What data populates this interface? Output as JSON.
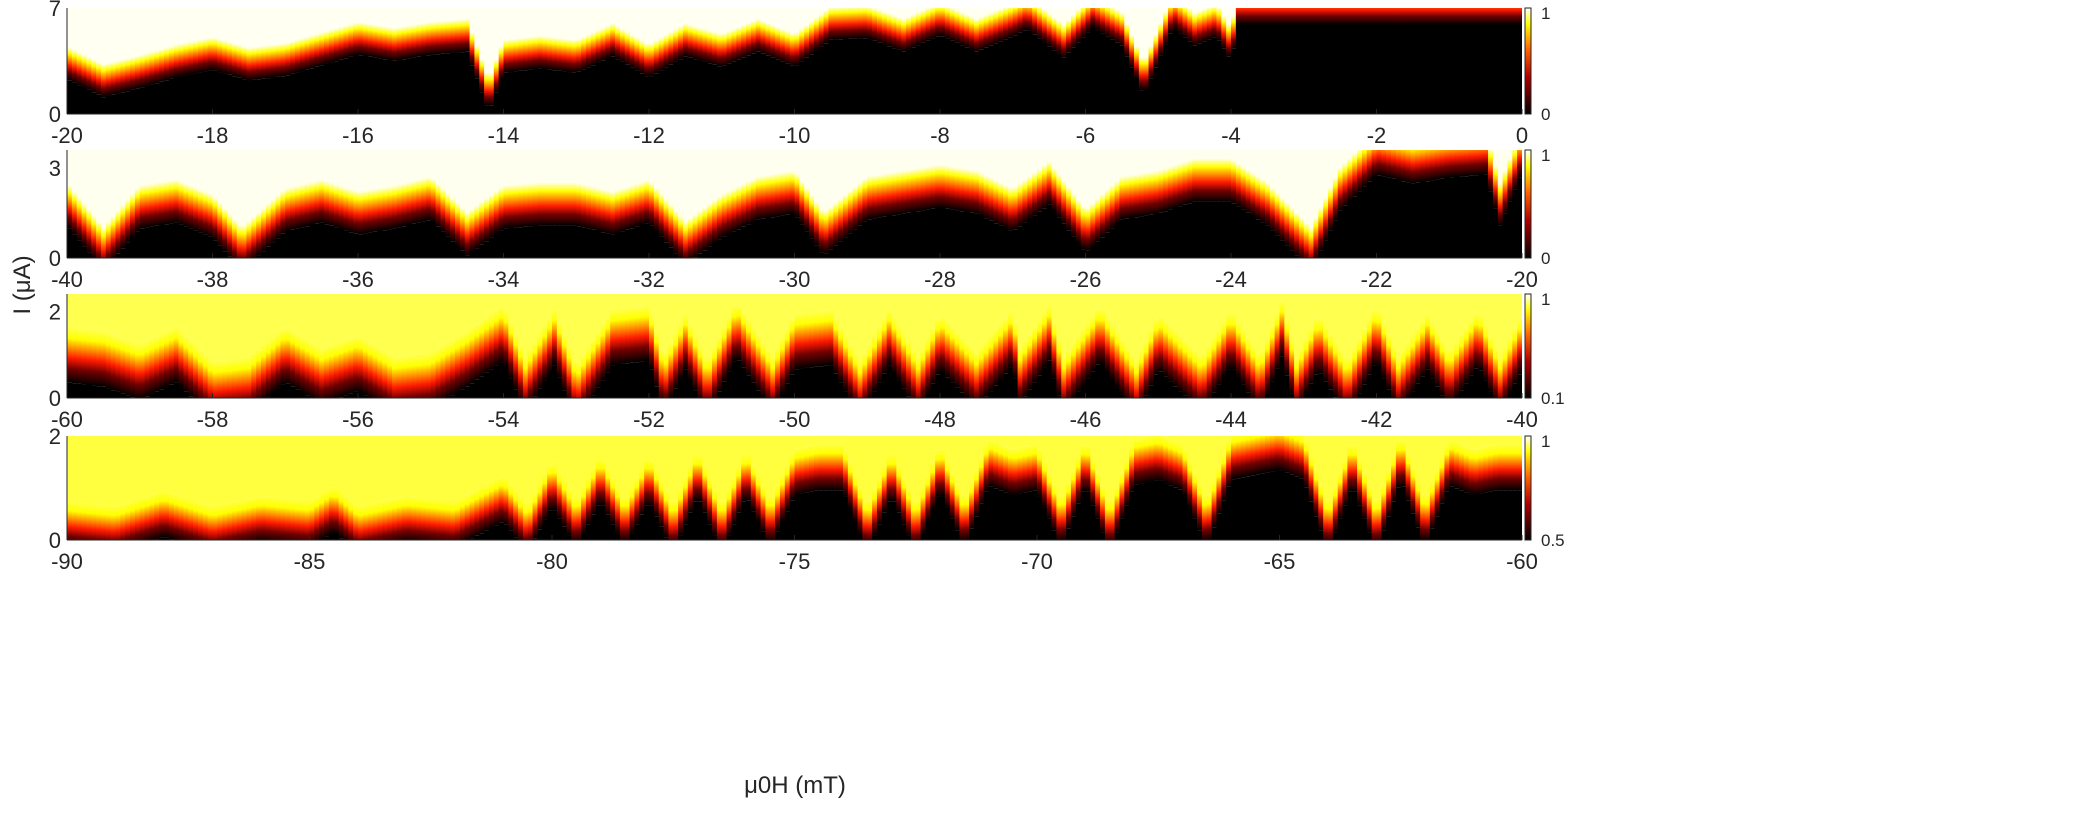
{
  "chart_data": {
    "type": "heatmap",
    "ylabel": "I (μA)",
    "xlabel": "μ0H (mT)",
    "colormap": "hot",
    "panels": [
      {
        "xlim": [
          -20,
          0
        ],
        "ylim": [
          0,
          7
        ],
        "xticks": [
          "-20",
          "-18",
          "-16",
          "-14",
          "-12",
          "-10",
          "-8",
          "-6",
          "-4",
          "-2",
          "0"
        ],
        "yticks": [
          "0",
          "7"
        ],
        "colorbar": {
          "min": "0",
          "max": "1"
        },
        "top_color": "#fffff2",
        "critical_current_boundary": [
          [
            -20,
            3.4
          ],
          [
            -19.5,
            2.2
          ],
          [
            -19,
            2.8
          ],
          [
            -18.5,
            3.5
          ],
          [
            -18,
            4.0
          ],
          [
            -17.5,
            3.3
          ],
          [
            -17,
            3.6
          ],
          [
            -16.5,
            4.3
          ],
          [
            -16,
            5.0
          ],
          [
            -15.5,
            4.6
          ],
          [
            -15,
            5.0
          ],
          [
            -14.5,
            5.2
          ],
          [
            -14.2,
            1.2
          ],
          [
            -14,
            3.8
          ],
          [
            -13.5,
            4.1
          ],
          [
            -13,
            3.8
          ],
          [
            -12.5,
            4.9
          ],
          [
            -12,
            3.5
          ],
          [
            -11.5,
            4.9
          ],
          [
            -11,
            4.2
          ],
          [
            -10.5,
            5.2
          ],
          [
            -10,
            4.2
          ],
          [
            -9.5,
            6.0
          ],
          [
            -9,
            6.1
          ],
          [
            -8.5,
            5.2
          ],
          [
            -8,
            6.3
          ],
          [
            -7.5,
            5.2
          ],
          [
            -7,
            6.2
          ],
          [
            -6.8,
            6.7
          ],
          [
            -6.3,
            4.8
          ],
          [
            -5.9,
            6.8
          ],
          [
            -5.5,
            5.6
          ],
          [
            -5.2,
            2.3
          ],
          [
            -4.8,
            6.8
          ],
          [
            -4.5,
            5.6
          ],
          [
            -4.2,
            6.2
          ],
          [
            -4.0,
            4.6
          ],
          [
            -3.9,
            7
          ],
          [
            0,
            7
          ]
        ]
      },
      {
        "xlim": [
          -40,
          -20
        ],
        "ylim": [
          0,
          3.6
        ],
        "xticks": [
          "-40",
          "-38",
          "-36",
          "-34",
          "-32",
          "-30",
          "-28",
          "-26",
          "-24",
          "-22",
          "-20"
        ],
        "yticks": [
          "0",
          "3"
        ],
        "colorbar": {
          "min": "0",
          "max": "1"
        },
        "top_color": "#fffff0",
        "critical_current_boundary": [
          [
            -40,
            1.8
          ],
          [
            -39.5,
            0.3
          ],
          [
            -39,
            1.7
          ],
          [
            -38.5,
            1.9
          ],
          [
            -38,
            1.4
          ],
          [
            -37.6,
            0.3
          ],
          [
            -37,
            1.6
          ],
          [
            -36.5,
            1.9
          ],
          [
            -36,
            1.5
          ],
          [
            -35.5,
            1.7
          ],
          [
            -35,
            2.0
          ],
          [
            -34.5,
            0.8
          ],
          [
            -34,
            1.7
          ],
          [
            -33.5,
            1.8
          ],
          [
            -33,
            1.8
          ],
          [
            -32.5,
            1.5
          ],
          [
            -32,
            1.9
          ],
          [
            -31.5,
            0.5
          ],
          [
            -31,
            1.4
          ],
          [
            -30.5,
            2.0
          ],
          [
            -30,
            2.2
          ],
          [
            -29.6,
            0.8
          ],
          [
            -29,
            2.0
          ],
          [
            -28.5,
            2.2
          ],
          [
            -28,
            2.4
          ],
          [
            -27.5,
            2.2
          ],
          [
            -27,
            1.6
          ],
          [
            -26.5,
            2.5
          ],
          [
            -26,
            0.9
          ],
          [
            -25.5,
            2.0
          ],
          [
            -25,
            2.2
          ],
          [
            -24.5,
            2.6
          ],
          [
            -24,
            2.6
          ],
          [
            -23.5,
            1.8
          ],
          [
            -22.9,
            0.3
          ],
          [
            -22.5,
            2.3
          ],
          [
            -22,
            3.5
          ],
          [
            -21.5,
            3.2
          ],
          [
            -21,
            3.4
          ],
          [
            -20.5,
            3.5
          ],
          [
            -20.3,
            1.8
          ],
          [
            -20,
            3.6
          ]
        ]
      },
      {
        "xlim": [
          -60,
          -40
        ],
        "ylim": [
          0,
          2.4
        ],
        "xticks": [
          "-60",
          "-58",
          "-56",
          "-54",
          "-52",
          "-50",
          "-48",
          "-46",
          "-44",
          "-42",
          "-40"
        ],
        "yticks": [
          "0",
          "2"
        ],
        "colorbar": {
          "min": "0.1",
          "max": "1"
        },
        "top_color": "#ffff50",
        "critical_current_boundary": [
          [
            -60,
            1.0
          ],
          [
            -59.5,
            0.9
          ],
          [
            -59,
            0.6
          ],
          [
            -58.5,
            1.0
          ],
          [
            -58,
            0.2
          ],
          [
            -57.5,
            0.3
          ],
          [
            -57,
            1.0
          ],
          [
            -56.5,
            0.5
          ],
          [
            -56,
            0.8
          ],
          [
            -55.5,
            0.3
          ],
          [
            -55,
            0.4
          ],
          [
            -54.5,
            0.9
          ],
          [
            -54,
            1.5
          ],
          [
            -53.7,
            0.3
          ],
          [
            -53.3,
            1.4
          ],
          [
            -53,
            0.1
          ],
          [
            -52.5,
            1.4
          ],
          [
            -52,
            1.5
          ],
          [
            -51.8,
            0.3
          ],
          [
            -51.5,
            1.3
          ],
          [
            -51.2,
            0.2
          ],
          [
            -50.8,
            1.6
          ],
          [
            -50.3,
            0.3
          ],
          [
            -50,
            1.3
          ],
          [
            -49.5,
            1.4
          ],
          [
            -49.1,
            0.2
          ],
          [
            -48.7,
            1.4
          ],
          [
            -48.3,
            0.3
          ],
          [
            -48,
            1.3
          ],
          [
            -47.5,
            0.4
          ],
          [
            -47,
            1.4
          ],
          [
            -46.9,
            0.5
          ],
          [
            -46.5,
            1.5
          ],
          [
            -46.3,
            0.3
          ],
          [
            -45.8,
            1.5
          ],
          [
            -45.3,
            0.2
          ],
          [
            -45,
            1.3
          ],
          [
            -44.4,
            0.3
          ],
          [
            -44,
            1.4
          ],
          [
            -43.6,
            0.3
          ],
          [
            -43.3,
            1.6
          ],
          [
            -43.1,
            0.3
          ],
          [
            -42.8,
            1.3
          ],
          [
            -42.4,
            0.2
          ],
          [
            -42,
            1.5
          ],
          [
            -41.7,
            0.3
          ],
          [
            -41.3,
            1.3
          ],
          [
            -41,
            0.4
          ],
          [
            -40.6,
            1.4
          ],
          [
            -40.3,
            0.3
          ],
          [
            -40,
            1.3
          ]
        ]
      },
      {
        "xlim": [
          -90,
          -60
        ],
        "ylim": [
          0,
          2
        ],
        "xticks": [
          "-90",
          "-85",
          "-80",
          "-75",
          "-70",
          "-65",
          "-60"
        ],
        "yticks": [
          "0",
          "2"
        ],
        "colorbar": {
          "min": "0.5",
          "max": "1"
        },
        "top_color": "#ffff40",
        "critical_current_boundary": [
          [
            -90,
            0.3
          ],
          [
            -89,
            0.2
          ],
          [
            -88,
            0.5
          ],
          [
            -87,
            0.2
          ],
          [
            -86,
            0.4
          ],
          [
            -85,
            0.3
          ],
          [
            -84.5,
            0.6
          ],
          [
            -84,
            0.2
          ],
          [
            -83,
            0.4
          ],
          [
            -82,
            0.3
          ],
          [
            -81,
            0.8
          ],
          [
            -80.5,
            0.2
          ],
          [
            -80,
            1.1
          ],
          [
            -79.5,
            0.3
          ],
          [
            -79,
            1.2
          ],
          [
            -78.5,
            0.3
          ],
          [
            -78,
            1.2
          ],
          [
            -77.5,
            0.2
          ],
          [
            -77,
            1.3
          ],
          [
            -76.5,
            0.2
          ],
          [
            -76,
            1.3
          ],
          [
            -75.5,
            0.3
          ],
          [
            -75,
            1.3
          ],
          [
            -74.5,
            1.4
          ],
          [
            -74,
            1.4
          ],
          [
            -73.5,
            0.2
          ],
          [
            -73,
            1.3
          ],
          [
            -72.5,
            0.2
          ],
          [
            -72,
            1.4
          ],
          [
            -71.5,
            0.3
          ],
          [
            -71,
            1.5
          ],
          [
            -70.5,
            1.3
          ],
          [
            -70,
            1.4
          ],
          [
            -69.5,
            0.3
          ],
          [
            -69,
            1.5
          ],
          [
            -68.5,
            0.2
          ],
          [
            -68,
            1.5
          ],
          [
            -67.5,
            1.6
          ],
          [
            -67,
            1.4
          ],
          [
            -66.5,
            0.3
          ],
          [
            -66,
            1.6
          ],
          [
            -65.5,
            1.7
          ],
          [
            -65,
            1.8
          ],
          [
            -64.5,
            1.6
          ],
          [
            -64,
            0.2
          ],
          [
            -63.5,
            1.5
          ],
          [
            -63,
            0.2
          ],
          [
            -62.5,
            1.6
          ],
          [
            -62,
            0.3
          ],
          [
            -61.5,
            1.5
          ],
          [
            -61,
            1.3
          ],
          [
            -60.5,
            1.4
          ],
          [
            -60,
            1.4
          ]
        ]
      }
    ]
  }
}
